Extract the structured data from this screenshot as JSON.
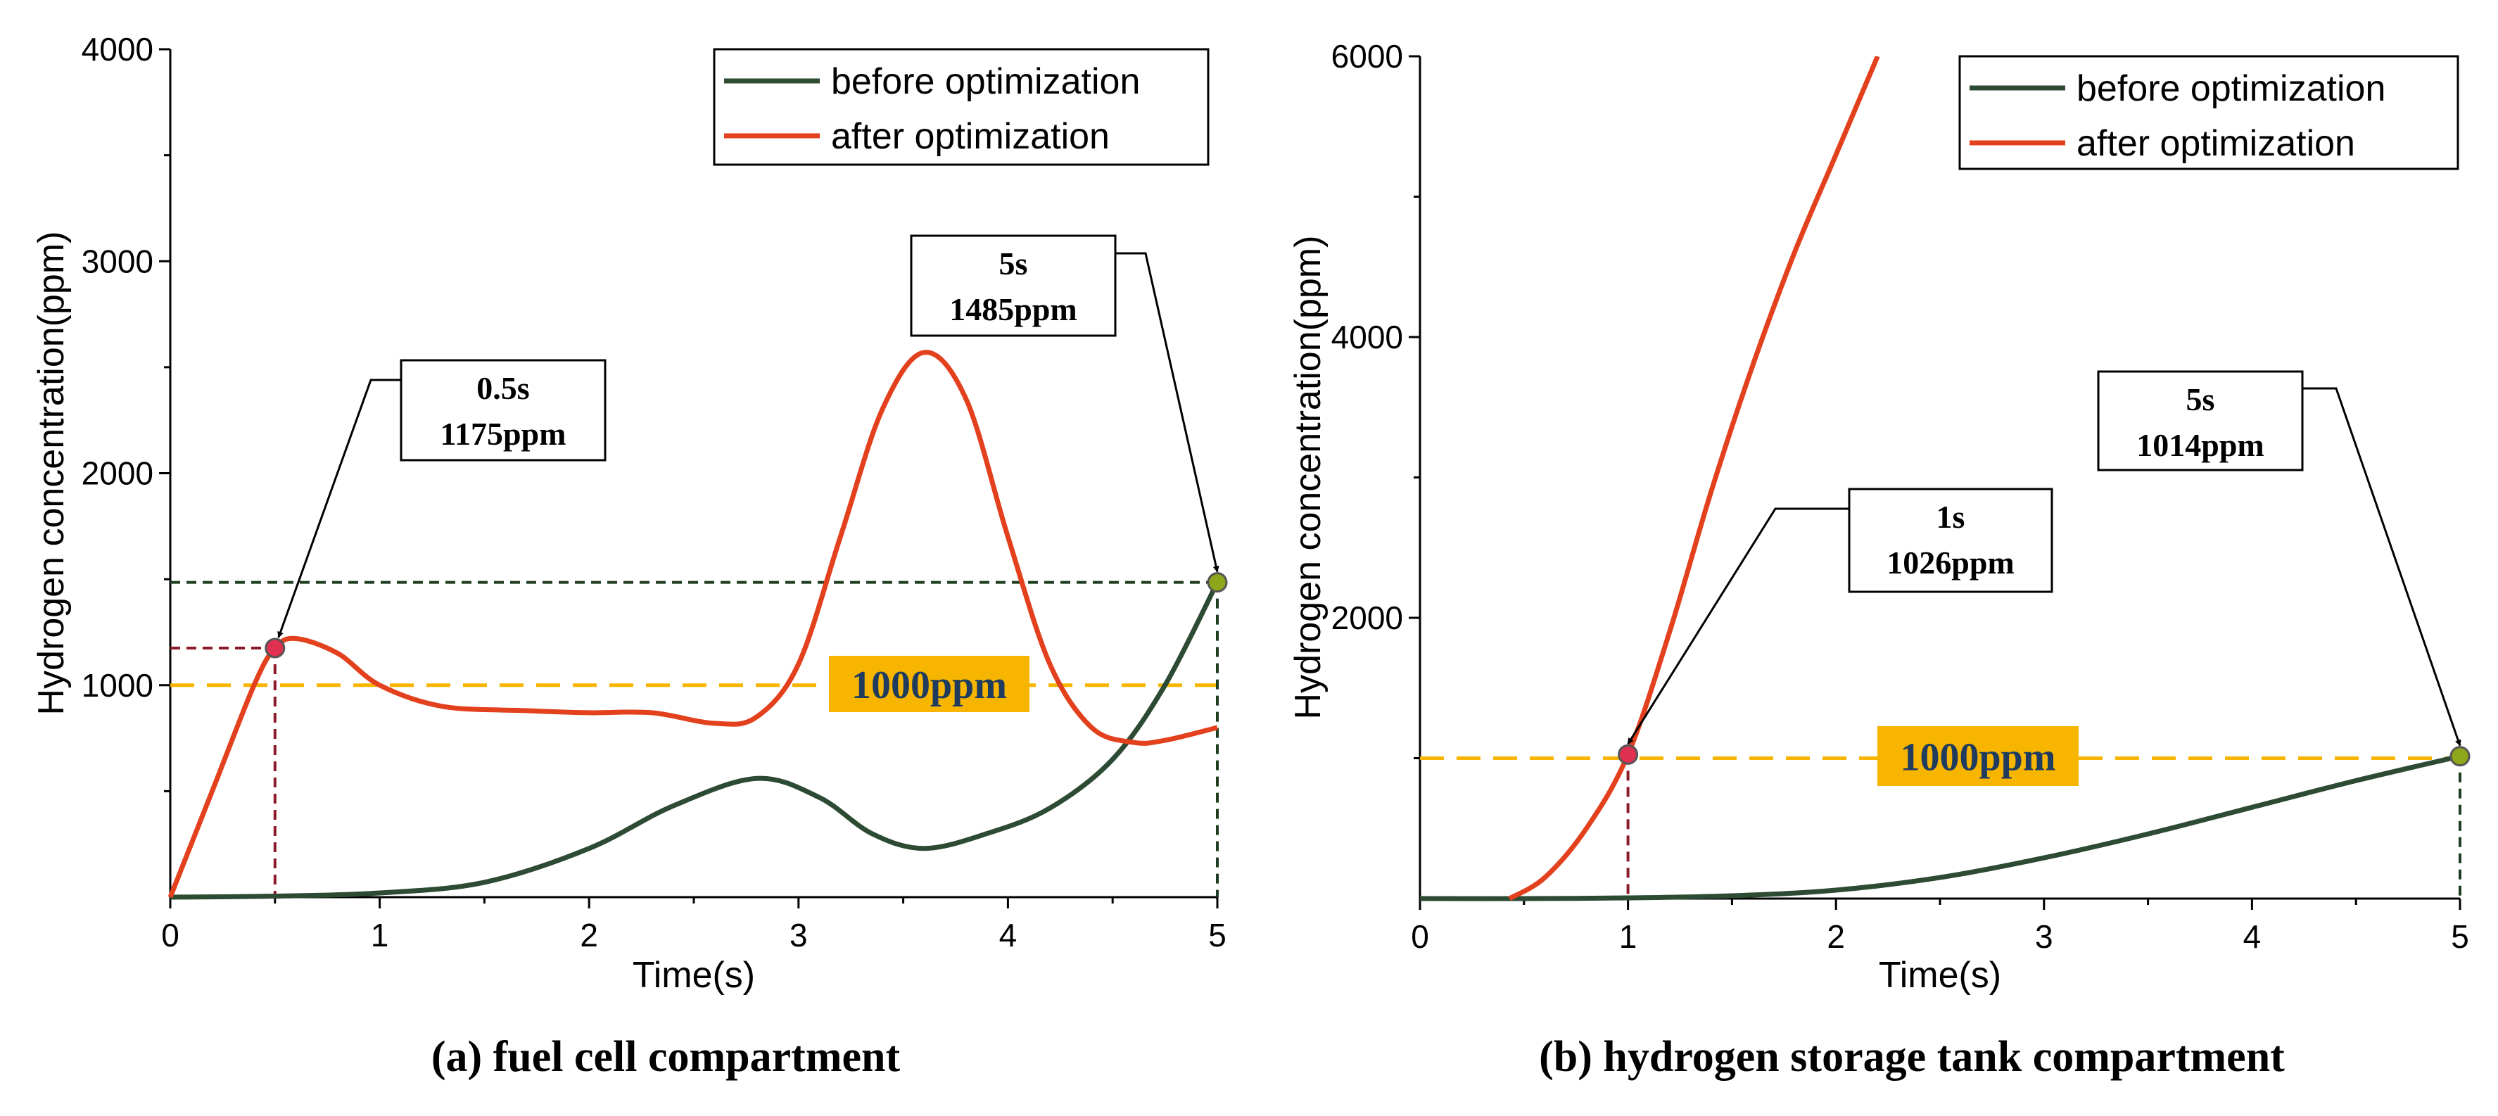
{
  "colors": {
    "before": "#2d4a33",
    "after": "#e3401d",
    "threshold": "#f7b500",
    "threshold_box": "#f7b500",
    "marker_after": "#e0304f",
    "marker_before": "#8ea61a",
    "guide_after": "#8b1a2b",
    "guide_before": "#1e3d20"
  },
  "chart_data": [
    {
      "type": "line",
      "caption": "(a) fuel cell compartment",
      "xlabel": "Time(s)",
      "ylabel": "Hydrogen concentration(ppm)",
      "xlim": [
        0,
        5
      ],
      "ylim": [
        0,
        4000
      ],
      "xticks": [
        "0",
        "1",
        "2",
        "3",
        "4",
        "5"
      ],
      "yticks": [
        "1000",
        "2000",
        "3000",
        "4000"
      ],
      "legend": [
        "before optimization",
        "after optimization"
      ],
      "series": [
        {
          "name": "before optimization",
          "x": [
            0,
            0.5,
            1.0,
            1.5,
            2.0,
            2.4,
            2.8,
            3.1,
            3.35,
            3.6,
            3.9,
            4.2,
            4.5,
            4.75,
            5.0
          ],
          "y": [
            0,
            5,
            20,
            70,
            230,
            430,
            560,
            470,
            300,
            230,
            300,
            420,
            650,
            1000,
            1485
          ]
        },
        {
          "name": "after optimization",
          "x": [
            0,
            0.2,
            0.4,
            0.5,
            0.6,
            0.8,
            1.0,
            1.3,
            1.7,
            2.0,
            2.3,
            2.6,
            2.8,
            3.0,
            3.2,
            3.4,
            3.6,
            3.8,
            4.0,
            4.2,
            4.4,
            4.6,
            4.75,
            5.0
          ],
          "y": [
            0,
            500,
            1000,
            1175,
            1220,
            1150,
            1000,
            900,
            880,
            870,
            870,
            820,
            850,
            1100,
            1700,
            2300,
            2570,
            2350,
            1700,
            1100,
            800,
            730,
            740,
            800
          ]
        }
      ],
      "threshold": {
        "value": 1000,
        "label": "1000ppm"
      },
      "annotations": [
        {
          "series": "after optimization",
          "x": 0.5,
          "y": 1175,
          "time_label": "0.5s",
          "value_label": "1175ppm"
        },
        {
          "series": "before optimization",
          "x": 5,
          "y": 1485,
          "time_label": "5s",
          "value_label": "1485ppm"
        }
      ]
    },
    {
      "type": "line",
      "caption": "(b) hydrogen storage tank compartment",
      "xlabel": "Time(s)",
      "ylabel": "Hydrogen concentration(ppm)",
      "xlim": [
        0,
        5
      ],
      "ylim": [
        0,
        6000
      ],
      "xticks": [
        "0",
        "1",
        "2",
        "3",
        "4",
        "5"
      ],
      "yticks": [
        "2000",
        "4000",
        "6000"
      ],
      "legend": [
        "before optimization",
        "after optimization"
      ],
      "series": [
        {
          "name": "before optimization",
          "x": [
            0,
            0.5,
            1.0,
            1.5,
            2.0,
            2.5,
            3.0,
            3.5,
            4.0,
            4.5,
            5.0
          ],
          "y": [
            0,
            0,
            5,
            20,
            60,
            150,
            290,
            460,
            650,
            840,
            1014
          ]
        },
        {
          "name": "after optimization",
          "x": [
            0.43,
            0.6,
            0.8,
            1.0,
            1.2,
            1.4,
            1.6,
            1.8,
            2.0,
            2.2
          ],
          "y": [
            0,
            150,
            500,
            1026,
            1900,
            2900,
            3800,
            4600,
            5300,
            6000
          ]
        }
      ],
      "threshold": {
        "value": 1000,
        "label": "1000ppm"
      },
      "annotations": [
        {
          "series": "after optimization",
          "x": 1,
          "y": 1026,
          "time_label": "1s",
          "value_label": "1026ppm"
        },
        {
          "series": "before optimization",
          "x": 5,
          "y": 1014,
          "time_label": "5s",
          "value_label": "1014ppm"
        }
      ]
    }
  ]
}
